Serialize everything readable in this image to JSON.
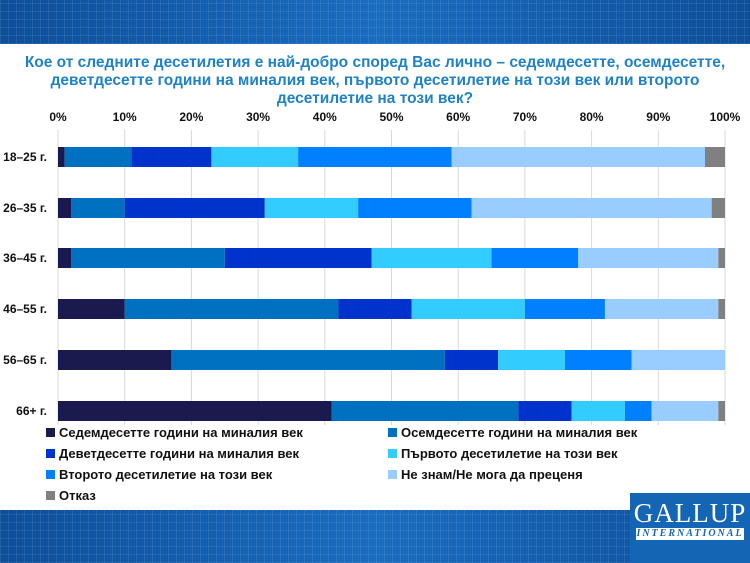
{
  "chart_data": {
    "type": "bar",
    "orientation": "horizontal-stacked-100",
    "title": "Кое от следните десетилетия е най-добро според Вас лично – седемдесетте, осемдесетте, деветдесетте години на миналия век, първото десетилетие на този век или второто десетилетие на този век?",
    "categories": [
      "18–25 г.",
      "26–35 г.",
      "36–45 г.",
      "46–55 г.",
      "56–65 г.",
      "66+ г."
    ],
    "xticks": [
      "0%",
      "10%",
      "20%",
      "30%",
      "40%",
      "50%",
      "60%",
      "70%",
      "80%",
      "90%",
      "100%"
    ],
    "xlim": [
      0,
      100
    ],
    "grid": true,
    "legend_placement": "bottom",
    "series": [
      {
        "name": "Седемдесетте години на миналия век",
        "color": "#1a1a4e",
        "values": [
          1,
          2,
          2,
          10,
          17,
          41
        ]
      },
      {
        "name": "Осемдесетте години на миналия век",
        "color": "#0070c0",
        "values": [
          10,
          8,
          23,
          32,
          41,
          28
        ]
      },
      {
        "name": "Деветдесетте години на миналия век",
        "color": "#0033cc",
        "values": [
          12,
          21,
          22,
          11,
          8,
          8
        ]
      },
      {
        "name": "Първото десетилетие на този век",
        "color": "#33ccff",
        "values": [
          13,
          14,
          18,
          17,
          10,
          8
        ]
      },
      {
        "name": "Второто десетилетие на този век",
        "color": "#0080ff",
        "values": [
          23,
          17,
          13,
          12,
          10,
          4
        ]
      },
      {
        "name": "Не знам/Не мога да преценя",
        "color": "#99ccff",
        "values": [
          38,
          36,
          21,
          17,
          14,
          10
        ]
      },
      {
        "name": "Отказ",
        "color": "#808080",
        "values": [
          3,
          2,
          1,
          1,
          0,
          1
        ]
      }
    ]
  },
  "logo": {
    "name": "GALLUP",
    "sub": "INTERNATIONAL"
  }
}
